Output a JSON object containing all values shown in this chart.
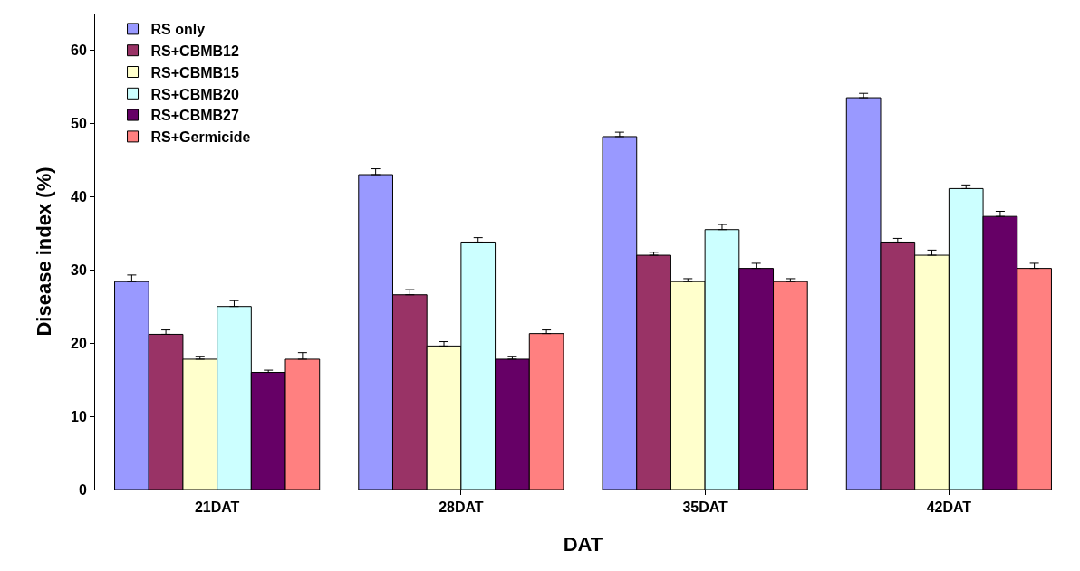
{
  "chart_data": {
    "type": "bar",
    "xlabel": "DAT",
    "ylabel": "Disease index (%)",
    "categories": [
      "21DAT",
      "28DAT",
      "35DAT",
      "42DAT"
    ],
    "series": [
      {
        "name": "RS only",
        "color": "#9999ff",
        "values": [
          28.4,
          43.0,
          48.2,
          53.5
        ],
        "errors": [
          [
            28.4,
            29.3
          ],
          [
            43.0,
            43.8
          ],
          [
            48.2,
            48.8
          ],
          [
            53.5,
            54.1
          ]
        ]
      },
      {
        "name": "RS+CBMB12",
        "color": "#993366",
        "values": [
          21.2,
          26.6,
          32.0,
          33.8
        ],
        "errors": [
          [
            21.2,
            21.8
          ],
          [
            26.6,
            27.3
          ],
          [
            32.0,
            32.4
          ],
          [
            33.8,
            34.3
          ]
        ]
      },
      {
        "name": "RS+CBMB15",
        "color": "#ffffcc",
        "values": [
          17.8,
          19.6,
          28.4,
          32.0
        ],
        "errors": [
          [
            17.8,
            18.2
          ],
          [
            19.6,
            20.2
          ],
          [
            28.4,
            28.8
          ],
          [
            32.0,
            32.7
          ]
        ]
      },
      {
        "name": "RS+CBMB20",
        "color": "#ccffff",
        "values": [
          25.0,
          33.8,
          35.5,
          41.1
        ],
        "errors": [
          [
            25.0,
            25.8
          ],
          [
            33.8,
            34.4
          ],
          [
            35.5,
            36.2
          ],
          [
            41.1,
            41.6
          ]
        ]
      },
      {
        "name": "RS+CBMB27",
        "color": "#660066",
        "values": [
          16.0,
          17.8,
          30.2,
          37.3
        ],
        "errors": [
          [
            16.0,
            16.3
          ],
          [
            17.8,
            18.2
          ],
          [
            30.2,
            30.9
          ],
          [
            37.3,
            38.0
          ]
        ]
      },
      {
        "name": "RS+Germicide",
        "color": "#ff8080",
        "values": [
          17.8,
          21.3,
          28.4,
          30.2
        ],
        "errors": [
          [
            17.8,
            18.7
          ],
          [
            21.3,
            21.8
          ],
          [
            28.4,
            28.8
          ],
          [
            30.2,
            30.9
          ]
        ]
      }
    ],
    "ylim": [
      0,
      65
    ],
    "yticks": [
      0,
      10,
      20,
      30,
      40,
      50,
      60
    ],
    "grid": false,
    "legend": "top left"
  }
}
